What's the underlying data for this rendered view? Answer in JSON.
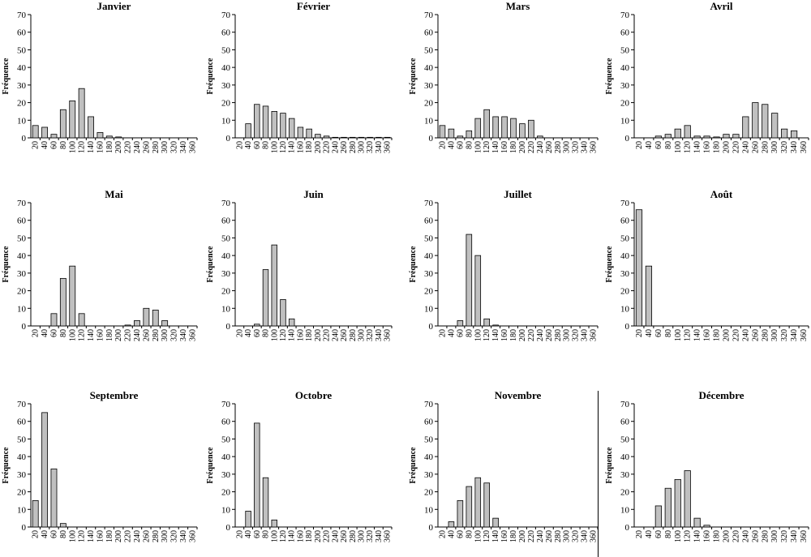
{
  "y_axis_label": "Fréquence",
  "chart_data": [
    {
      "type": "bar",
      "title": "Janvier",
      "ylabel": "Fréquence",
      "ylim": [
        0,
        70
      ],
      "yticks": [
        0,
        10,
        20,
        30,
        40,
        50,
        60,
        70
      ],
      "categories": [
        "20",
        "40",
        "60",
        "80",
        "100",
        "120",
        "140",
        "160",
        "180",
        "200",
        "220",
        "240",
        "260",
        "280",
        "300",
        "320",
        "340",
        "360"
      ],
      "values": [
        7,
        6,
        2,
        16,
        21,
        28,
        12,
        3,
        1,
        0.5,
        0,
        0,
        0,
        0,
        0,
        0,
        0,
        0
      ]
    },
    {
      "type": "bar",
      "title": "Février",
      "ylabel": "Fréquence",
      "ylim": [
        0,
        70
      ],
      "yticks": [
        0,
        10,
        20,
        30,
        40,
        50,
        60,
        70
      ],
      "categories": [
        "20",
        "40",
        "60",
        "80",
        "100",
        "120",
        "140",
        "160",
        "180",
        "200",
        "220",
        "240",
        "260",
        "280",
        "300",
        "320",
        "340",
        "360"
      ],
      "values": [
        0,
        8,
        19,
        18,
        15,
        14,
        11,
        6,
        5,
        2,
        1,
        0.3,
        0.3,
        0.3,
        0.3,
        0.3,
        0.3,
        0.3
      ]
    },
    {
      "type": "bar",
      "title": "Mars",
      "ylabel": "Fréquence",
      "ylim": [
        0,
        70
      ],
      "yticks": [
        0,
        10,
        20,
        30,
        40,
        50,
        60,
        70
      ],
      "categories": [
        "20",
        "40",
        "60",
        "80",
        "100",
        "120",
        "140",
        "160",
        "180",
        "200",
        "220",
        "240",
        "260",
        "280",
        "300",
        "320",
        "340",
        "360"
      ],
      "values": [
        7,
        5,
        1,
        4,
        11,
        16,
        12,
        12,
        11,
        8,
        10,
        1,
        0,
        0,
        0,
        0,
        0,
        0
      ]
    },
    {
      "type": "bar",
      "title": "Avril",
      "ylabel": "Fréquence",
      "ylim": [
        0,
        70
      ],
      "yticks": [
        0,
        10,
        20,
        30,
        40,
        50,
        60,
        70
      ],
      "categories": [
        "20",
        "40",
        "60",
        "80",
        "100",
        "120",
        "140",
        "160",
        "180",
        "200",
        "220",
        "240",
        "260",
        "280",
        "300",
        "320",
        "340",
        "360"
      ],
      "values": [
        0,
        0,
        1,
        2,
        5,
        7,
        1,
        1,
        0.5,
        2,
        2,
        12,
        20,
        19,
        14,
        5,
        4,
        0
      ]
    },
    {
      "type": "bar",
      "title": "Mai",
      "ylabel": "Fréquence",
      "ylim": [
        0,
        70
      ],
      "yticks": [
        0,
        10,
        20,
        30,
        40,
        50,
        60,
        70
      ],
      "categories": [
        "20",
        "40",
        "60",
        "80",
        "100",
        "120",
        "140",
        "160",
        "180",
        "200",
        "220",
        "240",
        "260",
        "280",
        "300",
        "320",
        "340",
        "360"
      ],
      "values": [
        0,
        0,
        7,
        27,
        34,
        7,
        0,
        0,
        0,
        0,
        0.5,
        3,
        10,
        9,
        3,
        0,
        0,
        0
      ]
    },
    {
      "type": "bar",
      "title": "Juin",
      "ylabel": "Fréquence",
      "ylim": [
        0,
        70
      ],
      "yticks": [
        0,
        10,
        20,
        30,
        40,
        50,
        60,
        70
      ],
      "categories": [
        "20",
        "40",
        "60",
        "80",
        "100",
        "120",
        "140",
        "160",
        "180",
        "200",
        "220",
        "240",
        "260",
        "280",
        "300",
        "320",
        "340",
        "360"
      ],
      "values": [
        0,
        0,
        1,
        32,
        46,
        15,
        4,
        0,
        0,
        0,
        0,
        0,
        0,
        0,
        0,
        0,
        0,
        0
      ]
    },
    {
      "type": "bar",
      "title": "Juillet",
      "ylabel": "Fréquence",
      "ylim": [
        0,
        70
      ],
      "yticks": [
        0,
        10,
        20,
        30,
        40,
        50,
        60,
        70
      ],
      "categories": [
        "20",
        "40",
        "60",
        "80",
        "100",
        "120",
        "140",
        "160",
        "180",
        "200",
        "220",
        "240",
        "260",
        "280",
        "300",
        "320",
        "340",
        "360"
      ],
      "values": [
        0,
        0,
        3,
        52,
        40,
        4,
        0.5,
        0,
        0,
        0,
        0,
        0,
        0,
        0,
        0,
        0,
        0,
        0
      ]
    },
    {
      "type": "bar",
      "title": "Août",
      "ylabel": "Fréquence",
      "ylim": [
        0,
        70
      ],
      "yticks": [
        0,
        10,
        20,
        30,
        40,
        50,
        60,
        70
      ],
      "categories": [
        "20",
        "40",
        "60",
        "80",
        "100",
        "120",
        "140",
        "160",
        "180",
        "200",
        "220",
        "240",
        "260",
        "280",
        "300",
        "320",
        "340",
        "360"
      ],
      "values": [
        66,
        34,
        0,
        0,
        0,
        0,
        0,
        0,
        0,
        0,
        0,
        0,
        0,
        0,
        0,
        0,
        0,
        0
      ]
    },
    {
      "type": "bar",
      "title": "Septembre",
      "ylabel": "Fréquence",
      "ylim": [
        0,
        70
      ],
      "yticks": [
        0,
        10,
        20,
        30,
        40,
        50,
        60,
        70
      ],
      "categories": [
        "20",
        "40",
        "60",
        "80",
        "100",
        "120",
        "140",
        "160",
        "180",
        "200",
        "220",
        "240",
        "260",
        "280",
        "300",
        "320",
        "340",
        "360"
      ],
      "values": [
        15,
        65,
        33,
        2,
        0,
        0,
        0,
        0,
        0,
        0,
        0,
        0,
        0,
        0,
        0,
        0,
        0,
        0
      ]
    },
    {
      "type": "bar",
      "title": "Octobre",
      "ylabel": "Fréquence",
      "ylim": [
        0,
        70
      ],
      "yticks": [
        0,
        10,
        20,
        30,
        40,
        50,
        60,
        70
      ],
      "categories": [
        "20",
        "40",
        "60",
        "80",
        "100",
        "120",
        "140",
        "160",
        "180",
        "200",
        "220",
        "240",
        "260",
        "280",
        "300",
        "320",
        "340",
        "360"
      ],
      "values": [
        0,
        9,
        59,
        28,
        4,
        0,
        0,
        0,
        0,
        0,
        0,
        0,
        0,
        0,
        0,
        0,
        0,
        0
      ]
    },
    {
      "type": "bar",
      "title": "Novembre",
      "ylabel": "Fréquence",
      "ylim": [
        0,
        70
      ],
      "yticks": [
        0,
        10,
        20,
        30,
        40,
        50,
        60,
        70
      ],
      "categories": [
        "20",
        "40",
        "60",
        "80",
        "100",
        "120",
        "140",
        "160",
        "180",
        "200",
        "220",
        "240",
        "260",
        "280",
        "300",
        "320",
        "340",
        "360"
      ],
      "values": [
        0,
        3,
        15,
        23,
        28,
        25,
        5,
        0,
        0,
        0,
        0,
        0,
        0,
        0,
        0,
        0,
        0,
        0
      ]
    },
    {
      "type": "bar",
      "title": "Décembre",
      "ylabel": "Fréquence",
      "ylim": [
        0,
        70
      ],
      "yticks": [
        0,
        10,
        20,
        30,
        40,
        50,
        60,
        70
      ],
      "categories": [
        "20",
        "40",
        "60",
        "80",
        "100",
        "120",
        "140",
        "160",
        "180",
        "200",
        "220",
        "240",
        "260",
        "280",
        "300",
        "320",
        "340",
        "360"
      ],
      "values": [
        0,
        0,
        12,
        22,
        27,
        32,
        5,
        1,
        0,
        0,
        0,
        0,
        0,
        0,
        0,
        0,
        0,
        0
      ]
    }
  ],
  "colors": {
    "bar_fill": "#c0c0c0",
    "bar_stroke": "#000000",
    "axis": "#000000",
    "text": "#000000"
  }
}
